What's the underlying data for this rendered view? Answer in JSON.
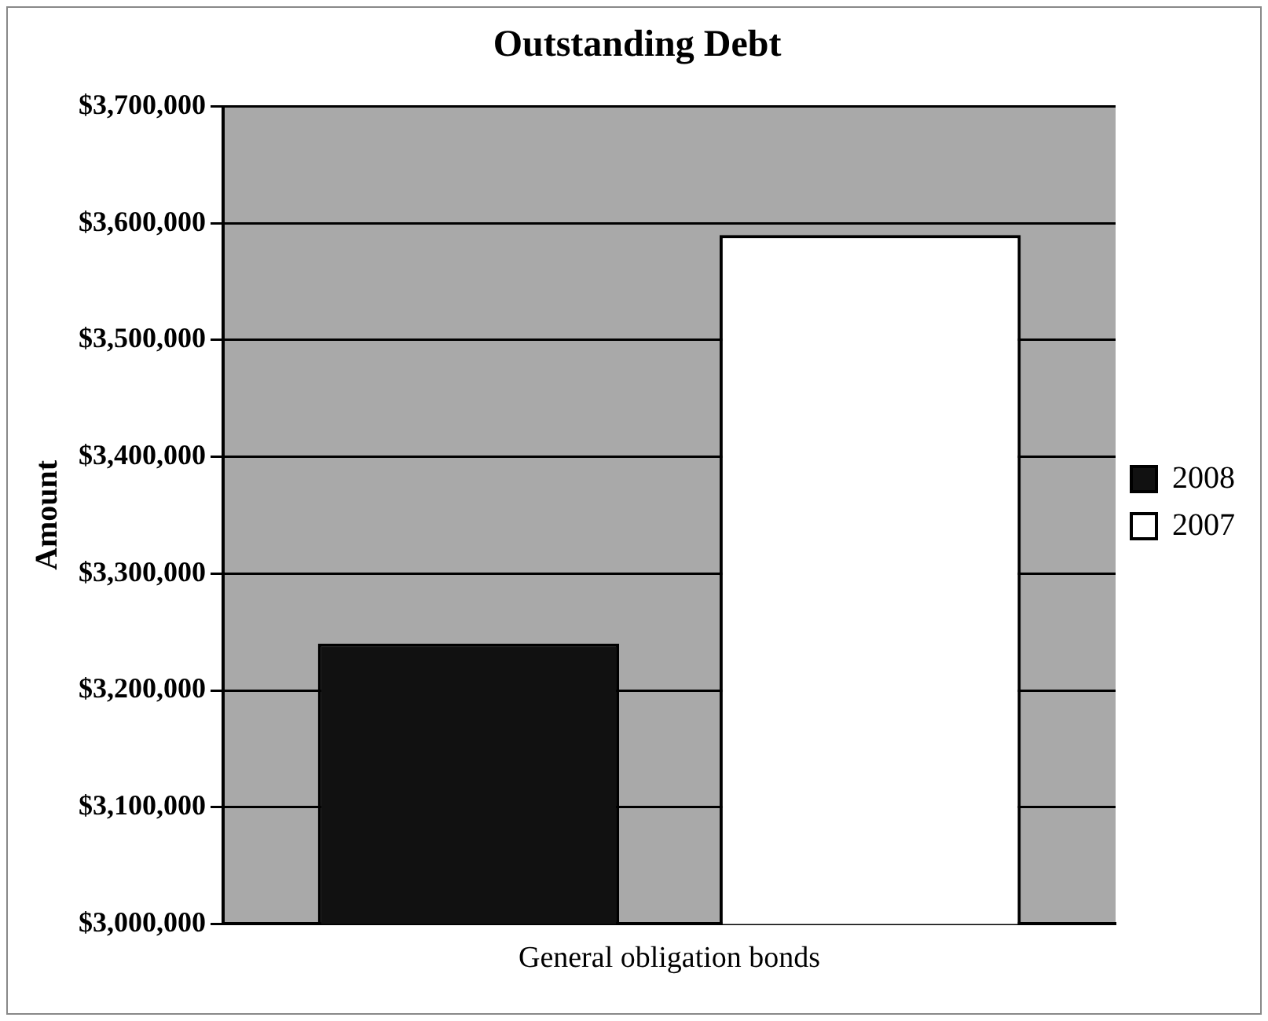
{
  "chart_data": {
    "type": "bar",
    "title": "Outstanding Debt",
    "ylabel": "Amount",
    "categories": [
      "General obligation bonds"
    ],
    "series": [
      {
        "name": "2008",
        "color": "#111111",
        "values": [
          3240000
        ]
      },
      {
        "name": "2007",
        "color": "#ffffff",
        "values": [
          3590000
        ]
      }
    ],
    "ylim": [
      3000000,
      3700000
    ],
    "yticks": [
      {
        "value": 3000000,
        "label": "$3,000,000"
      },
      {
        "value": 3100000,
        "label": "$3,100,000"
      },
      {
        "value": 3200000,
        "label": "$3,200,000"
      },
      {
        "value": 3300000,
        "label": "$3,300,000"
      },
      {
        "value": 3400000,
        "label": "$3,400,000"
      },
      {
        "value": 3500000,
        "label": "$3,500,000"
      },
      {
        "value": 3600000,
        "label": "$3,600,000"
      },
      {
        "value": 3700000,
        "label": "$3,700,000"
      }
    ],
    "grid": "y",
    "legend": "right"
  }
}
